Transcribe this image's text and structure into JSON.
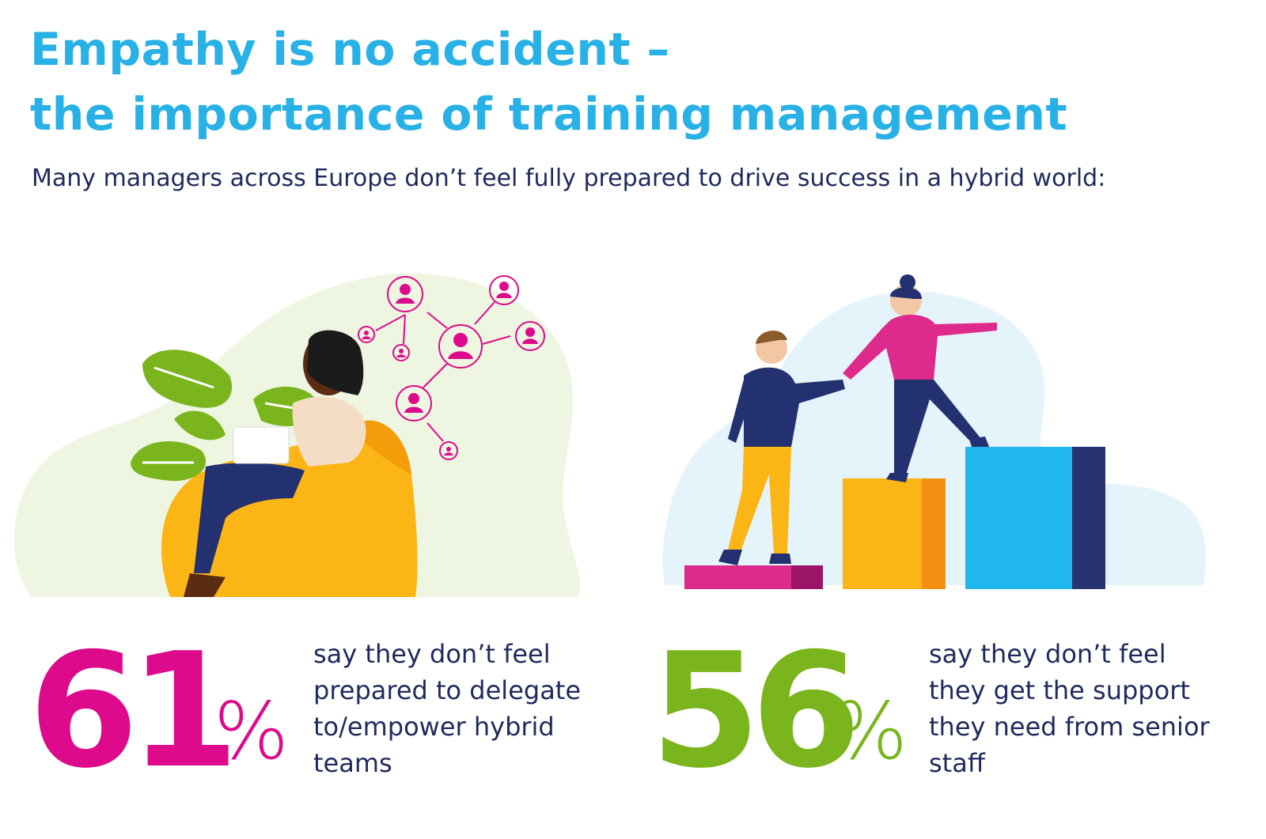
{
  "title": {
    "line1": "Empathy is no accident –",
    "line2": "the importance of training management"
  },
  "subtitle": "Many managers across Europe don’t feel fully prepared to drive success in a hybrid world:",
  "colors": {
    "title": "#28b1e6",
    "text": "#1f2a5c",
    "magenta": "#de0a8c",
    "green": "#7ab51d",
    "orange": "#fbb514",
    "blue": "#20b8ec",
    "navy": "#283470"
  },
  "illustrations": {
    "left": {
      "icon": "woman-laptop-network-icon"
    },
    "right": {
      "icon": "helping-hand-steps-icon"
    }
  },
  "stats": [
    {
      "number": "61",
      "unit": "%",
      "percent_value": 61,
      "lines": [
        "say they don’t feel",
        "prepared to delegate",
        "to/empower hybrid",
        "teams"
      ]
    },
    {
      "number": "56",
      "unit": "%",
      "percent_value": 56,
      "lines": [
        "say they don’t feel",
        "they get the support",
        "they need from senior",
        "staff"
      ]
    }
  ]
}
